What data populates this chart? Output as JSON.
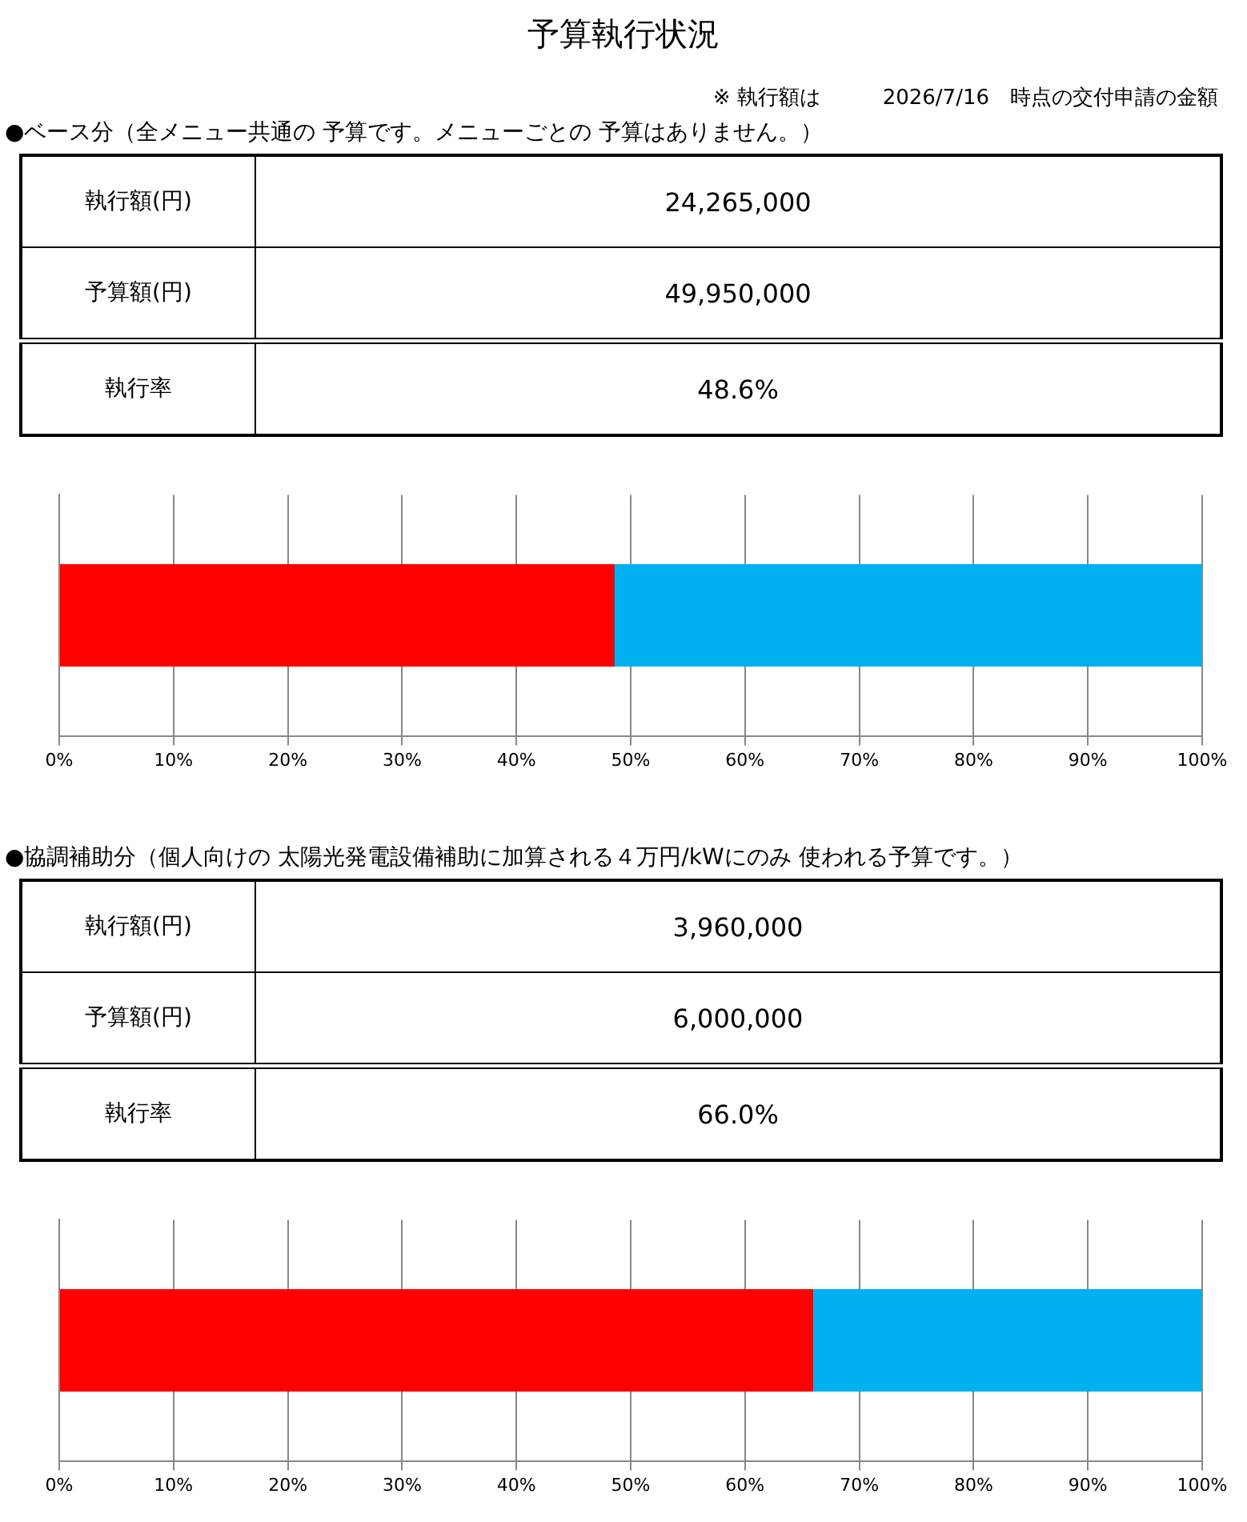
{
  "chart_data": [
    {
      "type": "bar",
      "title": "予算執行状況",
      "subtitle": "※ 執行額は　　　2026/7/16　時点の交付申請の金額",
      "orientation": "horizontal",
      "stacked": true,
      "categories": [
        null
      ],
      "series": [
        {
          "color": "#ff0000",
          "values": [
            48.6
          ]
        },
        {
          "color": "#00b0f0",
          "values": [
            51.4
          ]
        }
      ],
      "xlim": [
        0,
        100
      ],
      "xticks": [
        {
          "value": 0,
          "label": "0%"
        },
        {
          "value": 10,
          "label": "10%"
        },
        {
          "value": 20,
          "label": "20%"
        },
        {
          "value": 30,
          "label": "30%"
        },
        {
          "value": 40,
          "label": "40%"
        },
        {
          "value": 50,
          "label": "50%"
        },
        {
          "value": 60,
          "label": "60%"
        },
        {
          "value": 70,
          "label": "70%"
        },
        {
          "value": 80,
          "label": "80%"
        },
        {
          "value": 90,
          "label": "90%"
        },
        {
          "value": 100,
          "label": "100%"
        }
      ],
      "grid": "x",
      "legend": false,
      "annotations": [
        "●ベース分（全メニュー共通の 予算です。メニューごとの 予算はありません。）",
        "執行額(円)",
        "24,265,000",
        "予算額(円)",
        "49,950,000",
        "執行率",
        "48.6%"
      ]
    },
    {
      "type": "bar",
      "orientation": "horizontal",
      "stacked": true,
      "categories": [
        null
      ],
      "series": [
        {
          "color": "#ff0000",
          "values": [
            66.0
          ]
        },
        {
          "color": "#00b0f0",
          "values": [
            34.0
          ]
        }
      ],
      "xlim": [
        0,
        100
      ],
      "xticks": [
        {
          "value": 0,
          "label": "0%"
        },
        {
          "value": 10,
          "label": "10%"
        },
        {
          "value": 20,
          "label": "20%"
        },
        {
          "value": 30,
          "label": "30%"
        },
        {
          "value": 40,
          "label": "40%"
        },
        {
          "value": 50,
          "label": "50%"
        },
        {
          "value": 60,
          "label": "60%"
        },
        {
          "value": 70,
          "label": "70%"
        },
        {
          "value": 80,
          "label": "80%"
        },
        {
          "value": 90,
          "label": "90%"
        },
        {
          "value": 100,
          "label": "100%"
        }
      ],
      "grid": "x",
      "legend": false,
      "annotations": [
        "●協調補助分（個人向けの 太陽光発電設備補助に加算される４万円/kWにのみ 使われる予算です。）",
        "執行額(円)",
        "3,960,000",
        "予算額(円)",
        "6,000,000",
        "執行率",
        "66.0%"
      ]
    }
  ]
}
